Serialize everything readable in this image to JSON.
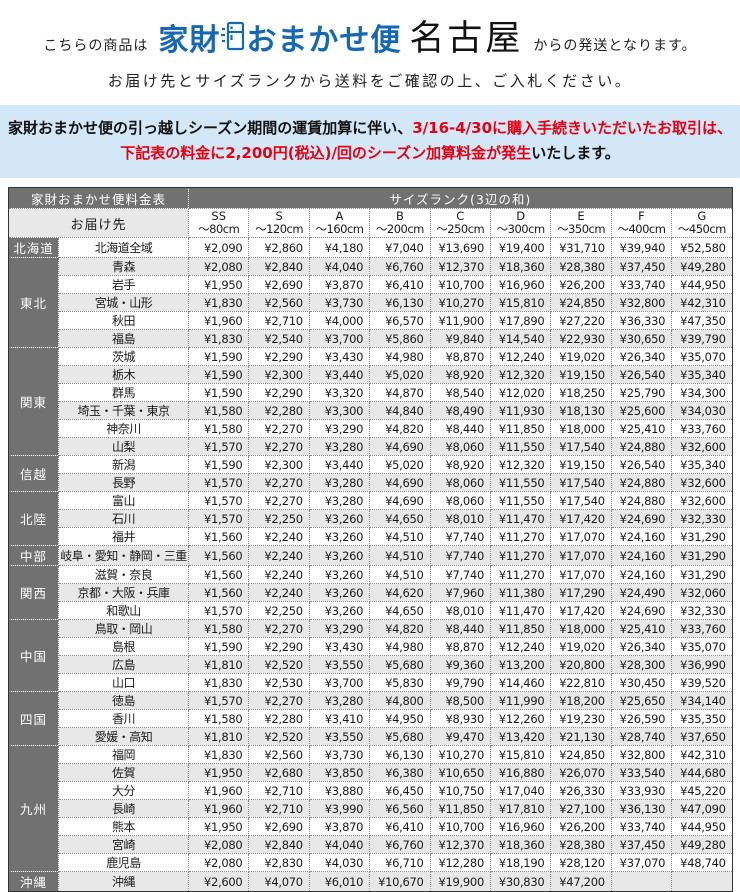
{
  "header": {
    "title_prefix": "こちらの商品は",
    "logo_left": "家財",
    "logo_right": "おまかせ便",
    "origin_city": "名古屋",
    "title_suffix": "からの発送となります。",
    "subtitle": "お届け先とサイズランクから送料をご確認の上、ご入札ください。"
  },
  "notice": {
    "line1_black": "家財おまかせ便の引っ越しシーズン期間の運賃加算に伴い、",
    "line1_red": "3/16-4/30に購入手続きいただいたお取引は、",
    "line2_red": "下記表の料金に2,200円(税込)/回のシーズン加算料金が発生",
    "line2_black": "いたします。"
  },
  "colors": {
    "logo_blue": "#1668b3",
    "notice_bg": "#d4e7f7",
    "notice_red": "#e60012",
    "header_dark_gray": "#717171",
    "row_stripe_gray": "#e8e8e8"
  },
  "rate_table": {
    "title": "家財おまかせ便料金表",
    "size_rank_label": "サイズランク(3辺の和)",
    "destination_label": "お届け先",
    "size_columns": [
      {
        "code": "SS",
        "range": "〜80cm"
      },
      {
        "code": "S",
        "range": "〜120cm"
      },
      {
        "code": "A",
        "range": "〜160cm"
      },
      {
        "code": "B",
        "range": "〜200cm"
      },
      {
        "code": "C",
        "range": "〜250cm"
      },
      {
        "code": "D",
        "range": "〜300cm"
      },
      {
        "code": "E",
        "range": "〜350cm"
      },
      {
        "code": "F",
        "range": "〜400cm"
      },
      {
        "code": "G",
        "range": "〜450cm"
      }
    ],
    "regions": [
      {
        "name": "北海道",
        "rows": [
          {
            "pref": "北海道全域",
            "prices": [
              "¥2,090",
              "¥2,860",
              "¥4,180",
              "¥7,040",
              "¥13,690",
              "¥19,400",
              "¥31,710",
              "¥39,940",
              "¥52,580"
            ]
          }
        ]
      },
      {
        "name": "東北",
        "rows": [
          {
            "pref": "青森",
            "prices": [
              "¥2,080",
              "¥2,840",
              "¥4,040",
              "¥6,760",
              "¥12,370",
              "¥18,360",
              "¥28,380",
              "¥37,450",
              "¥49,280"
            ]
          },
          {
            "pref": "岩手",
            "prices": [
              "¥1,950",
              "¥2,690",
              "¥3,870",
              "¥6,410",
              "¥10,700",
              "¥16,960",
              "¥26,200",
              "¥33,740",
              "¥44,950"
            ]
          },
          {
            "pref": "宮城・山形",
            "prices": [
              "¥1,830",
              "¥2,560",
              "¥3,730",
              "¥6,130",
              "¥10,270",
              "¥15,810",
              "¥24,850",
              "¥32,800",
              "¥42,310"
            ]
          },
          {
            "pref": "秋田",
            "prices": [
              "¥1,960",
              "¥2,710",
              "¥4,000",
              "¥6,570",
              "¥11,900",
              "¥17,890",
              "¥27,220",
              "¥36,330",
              "¥47,350"
            ]
          },
          {
            "pref": "福島",
            "prices": [
              "¥1,830",
              "¥2,540",
              "¥3,700",
              "¥5,860",
              "¥9,840",
              "¥14,540",
              "¥22,930",
              "¥30,650",
              "¥39,790"
            ]
          }
        ]
      },
      {
        "name": "関東",
        "rows": [
          {
            "pref": "茨城",
            "prices": [
              "¥1,590",
              "¥2,290",
              "¥3,430",
              "¥4,980",
              "¥8,870",
              "¥12,240",
              "¥19,020",
              "¥26,340",
              "¥35,070"
            ]
          },
          {
            "pref": "栃木",
            "prices": [
              "¥1,590",
              "¥2,300",
              "¥3,440",
              "¥5,020",
              "¥8,920",
              "¥12,320",
              "¥19,150",
              "¥26,540",
              "¥35,340"
            ]
          },
          {
            "pref": "群馬",
            "prices": [
              "¥1,590",
              "¥2,290",
              "¥3,320",
              "¥4,870",
              "¥8,540",
              "¥12,020",
              "¥18,250",
              "¥25,790",
              "¥34,300"
            ]
          },
          {
            "pref": "埼玉・千葉・東京",
            "prices": [
              "¥1,580",
              "¥2,280",
              "¥3,300",
              "¥4,840",
              "¥8,490",
              "¥11,930",
              "¥18,130",
              "¥25,600",
              "¥34,030"
            ]
          },
          {
            "pref": "神奈川",
            "prices": [
              "¥1,580",
              "¥2,270",
              "¥3,290",
              "¥4,820",
              "¥8,440",
              "¥11,850",
              "¥18,000",
              "¥25,410",
              "¥33,760"
            ]
          },
          {
            "pref": "山梨",
            "prices": [
              "¥1,570",
              "¥2,270",
              "¥3,280",
              "¥4,690",
              "¥8,060",
              "¥11,550",
              "¥17,540",
              "¥24,880",
              "¥32,600"
            ]
          }
        ]
      },
      {
        "name": "信越",
        "rows": [
          {
            "pref": "新潟",
            "prices": [
              "¥1,590",
              "¥2,300",
              "¥3,440",
              "¥5,020",
              "¥8,920",
              "¥12,320",
              "¥19,150",
              "¥26,540",
              "¥35,340"
            ]
          },
          {
            "pref": "長野",
            "prices": [
              "¥1,570",
              "¥2,270",
              "¥3,280",
              "¥4,690",
              "¥8,060",
              "¥11,550",
              "¥17,540",
              "¥24,880",
              "¥32,600"
            ]
          }
        ]
      },
      {
        "name": "北陸",
        "rows": [
          {
            "pref": "富山",
            "prices": [
              "¥1,570",
              "¥2,270",
              "¥3,280",
              "¥4,690",
              "¥8,060",
              "¥11,550",
              "¥17,540",
              "¥24,880",
              "¥32,600"
            ]
          },
          {
            "pref": "石川",
            "prices": [
              "¥1,570",
              "¥2,250",
              "¥3,260",
              "¥4,650",
              "¥8,010",
              "¥11,470",
              "¥17,420",
              "¥24,690",
              "¥32,330"
            ]
          },
          {
            "pref": "福井",
            "prices": [
              "¥1,560",
              "¥2,240",
              "¥3,260",
              "¥4,510",
              "¥7,740",
              "¥11,270",
              "¥17,070",
              "¥24,160",
              "¥31,290"
            ]
          }
        ]
      },
      {
        "name": "中部",
        "rows": [
          {
            "pref": "岐阜・愛知・静岡・三重",
            "prices": [
              "¥1,560",
              "¥2,240",
              "¥3,260",
              "¥4,510",
              "¥7,740",
              "¥11,270",
              "¥17,070",
              "¥24,160",
              "¥31,290"
            ]
          }
        ]
      },
      {
        "name": "関西",
        "rows": [
          {
            "pref": "滋賀・奈良",
            "prices": [
              "¥1,560",
              "¥2,240",
              "¥3,260",
              "¥4,510",
              "¥7,740",
              "¥11,270",
              "¥17,070",
              "¥24,160",
              "¥31,290"
            ]
          },
          {
            "pref": "京都・大阪・兵庫",
            "prices": [
              "¥1,560",
              "¥2,240",
              "¥3,260",
              "¥4,620",
              "¥7,960",
              "¥11,380",
              "¥17,290",
              "¥24,490",
              "¥32,060"
            ]
          },
          {
            "pref": "和歌山",
            "prices": [
              "¥1,570",
              "¥2,250",
              "¥3,260",
              "¥4,650",
              "¥8,010",
              "¥11,470",
              "¥17,420",
              "¥24,690",
              "¥32,330"
            ]
          }
        ]
      },
      {
        "name": "中国",
        "rows": [
          {
            "pref": "鳥取・岡山",
            "prices": [
              "¥1,580",
              "¥2,270",
              "¥3,290",
              "¥4,820",
              "¥8,440",
              "¥11,850",
              "¥18,000",
              "¥25,410",
              "¥33,760"
            ]
          },
          {
            "pref": "島根",
            "prices": [
              "¥1,590",
              "¥2,290",
              "¥3,430",
              "¥4,980",
              "¥8,870",
              "¥12,240",
              "¥19,020",
              "¥26,340",
              "¥35,070"
            ]
          },
          {
            "pref": "広島",
            "prices": [
              "¥1,810",
              "¥2,520",
              "¥3,550",
              "¥5,680",
              "¥9,360",
              "¥13,200",
              "¥20,800",
              "¥28,300",
              "¥36,990"
            ]
          },
          {
            "pref": "山口",
            "prices": [
              "¥1,830",
              "¥2,530",
              "¥3,700",
              "¥5,830",
              "¥9,790",
              "¥14,460",
              "¥22,810",
              "¥30,450",
              "¥39,520"
            ]
          }
        ]
      },
      {
        "name": "四国",
        "rows": [
          {
            "pref": "徳島",
            "prices": [
              "¥1,570",
              "¥2,270",
              "¥3,280",
              "¥4,800",
              "¥8,500",
              "¥11,990",
              "¥18,200",
              "¥25,650",
              "¥34,140"
            ]
          },
          {
            "pref": "香川",
            "prices": [
              "¥1,580",
              "¥2,280",
              "¥3,410",
              "¥4,950",
              "¥8,930",
              "¥12,260",
              "¥19,230",
              "¥26,590",
              "¥35,350"
            ]
          },
          {
            "pref": "愛媛・高知",
            "prices": [
              "¥1,810",
              "¥2,520",
              "¥3,550",
              "¥5,680",
              "¥9,470",
              "¥13,420",
              "¥21,130",
              "¥28,740",
              "¥37,650"
            ]
          }
        ]
      },
      {
        "name": "九州",
        "rows": [
          {
            "pref": "福岡",
            "prices": [
              "¥1,830",
              "¥2,560",
              "¥3,730",
              "¥6,130",
              "¥10,270",
              "¥15,810",
              "¥24,850",
              "¥32,800",
              "¥42,310"
            ]
          },
          {
            "pref": "佐賀",
            "prices": [
              "¥1,950",
              "¥2,680",
              "¥3,850",
              "¥6,380",
              "¥10,650",
              "¥16,880",
              "¥26,070",
              "¥33,540",
              "¥44,680"
            ]
          },
          {
            "pref": "大分",
            "prices": [
              "¥1,960",
              "¥2,710",
              "¥3,880",
              "¥6,450",
              "¥10,750",
              "¥17,040",
              "¥26,330",
              "¥33,930",
              "¥45,220"
            ]
          },
          {
            "pref": "長崎",
            "prices": [
              "¥1,960",
              "¥2,710",
              "¥3,990",
              "¥6,560",
              "¥11,850",
              "¥17,810",
              "¥27,100",
              "¥36,130",
              "¥47,090"
            ]
          },
          {
            "pref": "熊本",
            "prices": [
              "¥1,950",
              "¥2,690",
              "¥3,870",
              "¥6,410",
              "¥10,700",
              "¥16,960",
              "¥26,200",
              "¥33,740",
              "¥44,950"
            ]
          },
          {
            "pref": "宮崎",
            "prices": [
              "¥2,080",
              "¥2,840",
              "¥4,040",
              "¥6,760",
              "¥12,370",
              "¥18,360",
              "¥28,380",
              "¥37,450",
              "¥49,280"
            ]
          },
          {
            "pref": "鹿児島",
            "prices": [
              "¥2,080",
              "¥2,830",
              "¥4,030",
              "¥6,710",
              "¥12,280",
              "¥18,190",
              "¥28,120",
              "¥37,070",
              "¥48,740"
            ]
          }
        ]
      },
      {
        "name": "沖縄",
        "rows": [
          {
            "pref": "沖縄",
            "prices": [
              "¥2,600",
              "¥4,070",
              "¥6,010",
              "¥10,670",
              "¥19,900",
              "¥30,830",
              "¥47,200",
              null,
              null
            ]
          }
        ]
      }
    ]
  }
}
